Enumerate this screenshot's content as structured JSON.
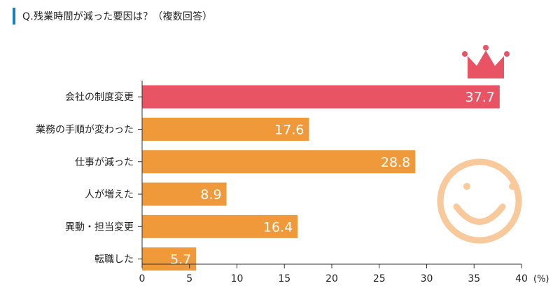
{
  "header": {
    "title": "Q.残業時間が減った要因は？（複数回答）"
  },
  "chart_data": {
    "type": "bar",
    "orientation": "horizontal",
    "categories": [
      "会社の制度変更",
      "業務の手順が変わった",
      "仕事が減った",
      "人が増えた",
      "異動・担当変更",
      "転職した"
    ],
    "values": [
      37.7,
      17.6,
      28.8,
      8.9,
      16.4,
      5.7
    ],
    "value_labels": [
      "37.7",
      "17.6",
      "28.8",
      "8.9",
      "16.4",
      "5.7"
    ],
    "xlim": [
      0,
      40
    ],
    "xticks": [
      0,
      5,
      10,
      15,
      20,
      25,
      30,
      35,
      40
    ],
    "xtick_labels": [
      "0",
      "5",
      "10",
      "15",
      "20",
      "25",
      "30",
      "35",
      "40"
    ],
    "unit_label": "(%)",
    "grid": false,
    "colors": {
      "highlight": "#e95465",
      "default": "#f0993a",
      "label_text": "#ffffff",
      "smiley": "#f8c99a",
      "crown": "#e95465",
      "axis": "#333333"
    },
    "decorations": [
      "crown-icon",
      "smiley-face-icon"
    ]
  }
}
